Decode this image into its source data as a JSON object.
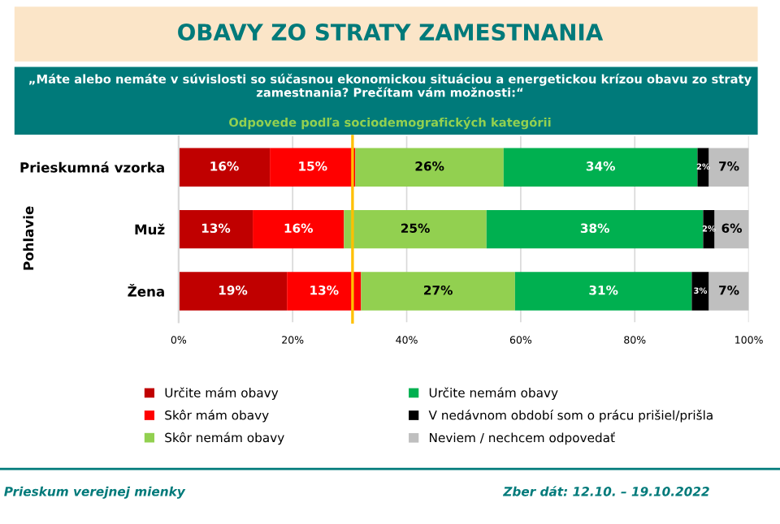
{
  "chart_data": {
    "type": "bar",
    "orientation": "horizontal",
    "stacked": true,
    "title": "OBAVY ZO STRATY ZAMESTNANIA",
    "subtitle": "„Máte alebo nemáte v súvislosti so súčasnou ekonomickou situáciou a energetickou krízou obavu zo straty zamestnania? Prečítam vám možnosti:“",
    "categories": [
      "Prieskumná vzorka",
      "Muž",
      "Žena"
    ],
    "series": [
      {
        "name": "Určite mám obavy",
        "color": "#c00000",
        "values": [
          16,
          13,
          19
        ],
        "value_labels": [
          "16%",
          "13%",
          "19%"
        ]
      },
      {
        "name": "Skôr mám obavy",
        "color": "#ff0000",
        "values": [
          15,
          16,
          13
        ],
        "value_labels": [
          "15%",
          "16%",
          "13%"
        ]
      },
      {
        "name": "Skôr nemám obavy",
        "color": "#92d050",
        "values": [
          26,
          25,
          27
        ],
        "value_labels": [
          "26%",
          "25%",
          "27%"
        ]
      },
      {
        "name": "Určite nemám obavy",
        "color": "#00b050",
        "values": [
          34,
          38,
          31
        ],
        "value_labels": [
          "34%",
          "38%",
          "31%"
        ]
      },
      {
        "name": "V nedávnom období som o prácu prišiel/prišla",
        "color": "#000000",
        "values": [
          2,
          2,
          3
        ],
        "value_labels": [
          "2%",
          "2%",
          "3%"
        ]
      },
      {
        "name": "Neviem / nechcem odpovedať",
        "color": "#bfbfbf",
        "values": [
          7,
          6,
          7
        ],
        "value_labels": [
          "7%",
          "6%",
          "7%"
        ]
      }
    ],
    "xlim": [
      0,
      100
    ],
    "xticks": [
      {
        "value": 0,
        "label": "0%"
      },
      {
        "value": 20,
        "label": "20%"
      },
      {
        "value": 40,
        "label": "40%"
      },
      {
        "value": 60,
        "label": "60%"
      },
      {
        "value": 80,
        "label": "80%"
      },
      {
        "value": 100,
        "label": "100%"
      }
    ],
    "ref_lines": [
      {
        "axis": "x",
        "value": 30.5,
        "label": null,
        "color": "#ffc000"
      }
    ],
    "grid": "x",
    "legend": "bottom",
    "annotations": [
      "Odpovede podľa sociodemografických kategórii",
      "Pohlavie",
      "Prieskum verejnej mienky",
      "Zber dát: 12.10. – 19.10.2022"
    ]
  }
}
